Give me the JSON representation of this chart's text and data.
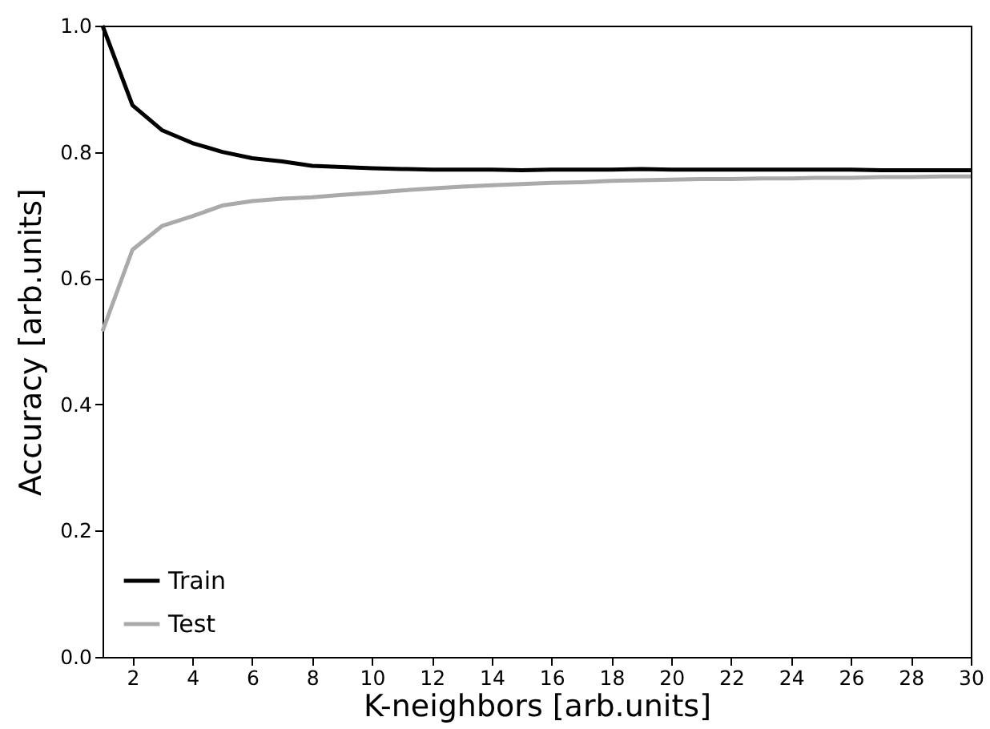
{
  "chart_data": {
    "type": "line",
    "xlabel": "K-neighbors [arb.units]",
    "ylabel": "Accuracy [arb.units]",
    "x": [
      1,
      2,
      3,
      4,
      5,
      6,
      7,
      8,
      9,
      10,
      11,
      12,
      13,
      14,
      15,
      16,
      17,
      18,
      19,
      20,
      21,
      22,
      23,
      24,
      25,
      26,
      27,
      28,
      29,
      30
    ],
    "series": [
      {
        "name": "Train",
        "color": "#000000",
        "values": [
          1.0,
          0.874,
          0.834,
          0.814,
          0.8,
          0.79,
          0.785,
          0.778,
          0.776,
          0.774,
          0.773,
          0.772,
          0.772,
          0.772,
          0.771,
          0.772,
          0.772,
          0.772,
          0.773,
          0.772,
          0.772,
          0.772,
          0.772,
          0.772,
          0.772,
          0.772,
          0.771,
          0.771,
          0.771,
          0.771
        ]
      },
      {
        "name": "Test",
        "color": "#aaaaaa",
        "values": [
          0.516,
          0.645,
          0.683,
          0.698,
          0.715,
          0.722,
          0.726,
          0.728,
          0.732,
          0.735,
          0.739,
          0.742,
          0.745,
          0.747,
          0.749,
          0.751,
          0.752,
          0.754,
          0.755,
          0.756,
          0.757,
          0.757,
          0.758,
          0.758,
          0.759,
          0.759,
          0.76,
          0.76,
          0.761,
          0.761
        ]
      }
    ],
    "xlim": [
      1,
      30
    ],
    "xticks": [
      2,
      4,
      6,
      8,
      10,
      12,
      14,
      16,
      18,
      20,
      22,
      24,
      26,
      28,
      30
    ],
    "ylim": [
      0,
      1
    ],
    "yticks": [
      {
        "value": 0,
        "label": "0.0"
      },
      {
        "value": 0.2,
        "label": "0.2"
      },
      {
        "value": 0.4,
        "label": "0.4"
      },
      {
        "value": 0.6,
        "label": "0.6"
      },
      {
        "value": 0.8,
        "label": "0.8"
      },
      {
        "value": 1,
        "label": "1.0"
      }
    ],
    "grid": false,
    "legend": "bottom left",
    "marker": "none",
    "line_style": "solid"
  }
}
